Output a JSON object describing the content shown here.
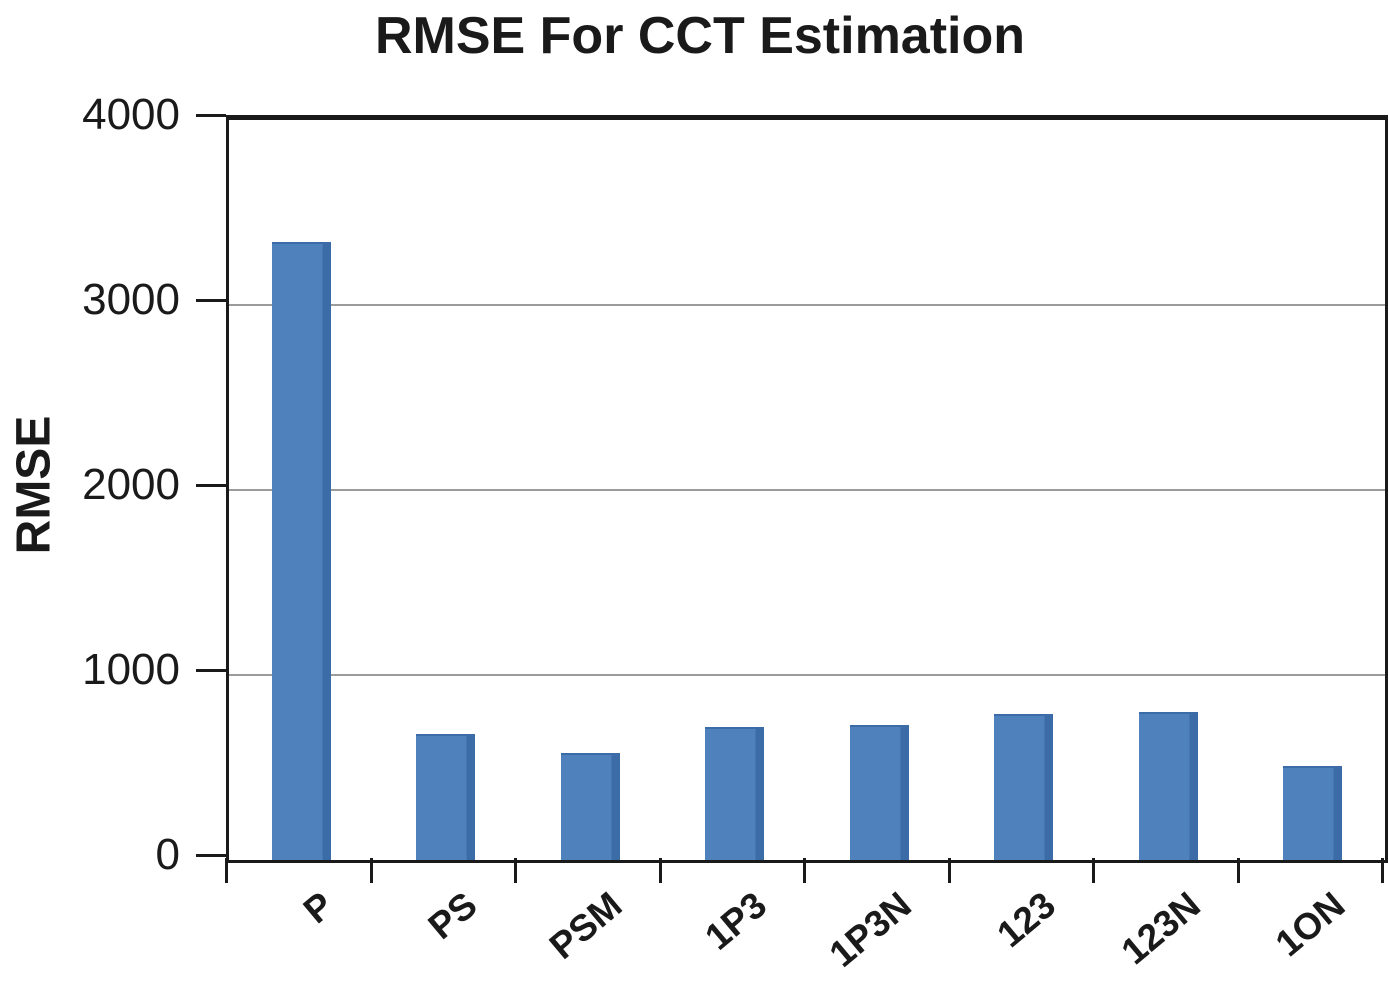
{
  "chart_data": {
    "type": "bar",
    "title": "RMSE For CCT Estimation",
    "xlabel": "",
    "ylabel": "RMSE",
    "categories": [
      "P",
      "PS",
      "PSM",
      "1P3",
      "1P3N",
      "123",
      "123N",
      "1ON"
    ],
    "values": [
      3340,
      680,
      580,
      720,
      730,
      790,
      800,
      510
    ],
    "ylim": [
      0,
      4000
    ],
    "yticks": [
      0,
      1000,
      2000,
      3000,
      4000
    ],
    "grid": "horizontal gridlines at each ytick",
    "legend": "none",
    "x_tick_label_rotation_deg": -40,
    "colors": {
      "bar": "#4f81bd",
      "bar_edge": "#3c6ca8",
      "grid": "#9b9b9b",
      "axis": "#1a1a1a",
      "text": "#1a1a1a",
      "background": "#ffffff"
    }
  }
}
